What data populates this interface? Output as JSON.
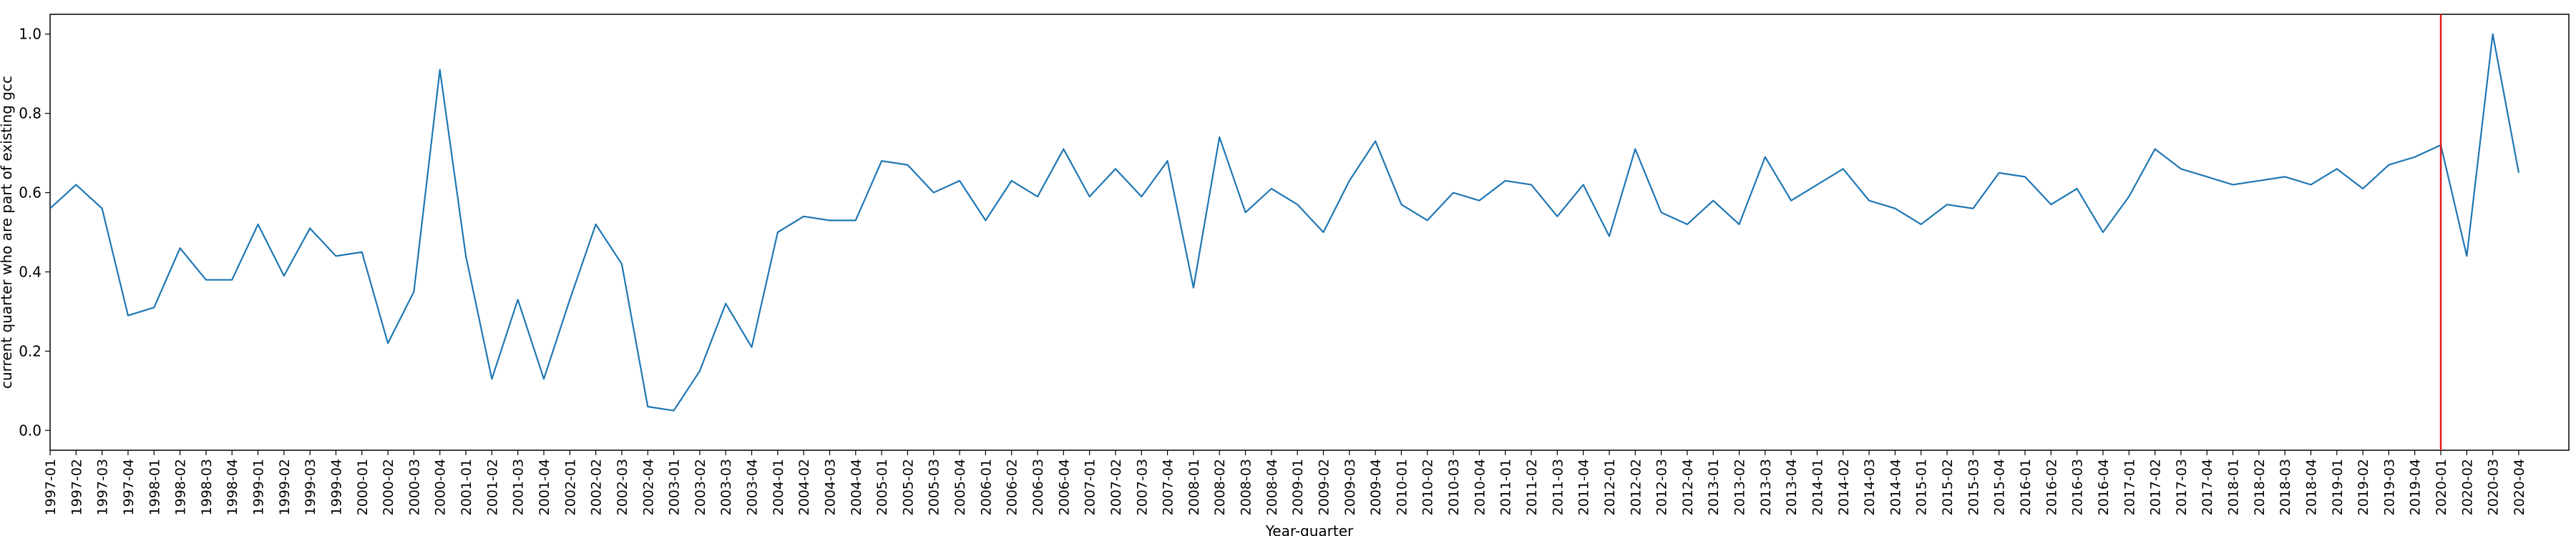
{
  "chart_data": {
    "type": "line",
    "xlabel": "Year-quarter",
    "ylabel": "current quarter who are part of existing gcc",
    "ylim": [
      -0.05,
      1.05
    ],
    "yticks": [
      0.0,
      0.2,
      0.4,
      0.6,
      0.8,
      1.0
    ],
    "ytick_labels": [
      "0.0",
      "0.2",
      "0.4",
      "0.6",
      "0.8",
      "1.0"
    ],
    "grid": false,
    "line_color": "#1f77b4",
    "marker_line": {
      "at": "2020-01",
      "color": "#e31a1c"
    },
    "x": [
      "1997-01",
      "1997-02",
      "1997-03",
      "1997-04",
      "1998-01",
      "1998-02",
      "1998-03",
      "1998-04",
      "1999-01",
      "1999-02",
      "1999-03",
      "1999-04",
      "2000-01",
      "2000-02",
      "2000-03",
      "2000-04",
      "2001-01",
      "2001-02",
      "2001-03",
      "2001-04",
      "2002-01",
      "2002-02",
      "2002-03",
      "2002-04",
      "2003-01",
      "2003-02",
      "2003-03",
      "2003-04",
      "2004-01",
      "2004-02",
      "2004-03",
      "2004-04",
      "2005-01",
      "2005-02",
      "2005-03",
      "2005-04",
      "2006-01",
      "2006-02",
      "2006-03",
      "2006-04",
      "2007-01",
      "2007-02",
      "2007-03",
      "2007-04",
      "2008-01",
      "2008-02",
      "2008-03",
      "2008-04",
      "2009-01",
      "2009-02",
      "2009-03",
      "2009-04",
      "2010-01",
      "2010-02",
      "2010-03",
      "2010-04",
      "2011-01",
      "2011-02",
      "2011-03",
      "2011-04",
      "2012-01",
      "2012-02",
      "2012-03",
      "2012-04",
      "2013-01",
      "2013-02",
      "2013-03",
      "2013-04",
      "2014-01",
      "2014-02",
      "2014-03",
      "2014-04",
      "2015-01",
      "2015-02",
      "2015-03",
      "2015-04",
      "2016-01",
      "2016-02",
      "2016-03",
      "2016-04",
      "2017-01",
      "2017-02",
      "2017-03",
      "2017-04",
      "2018-01",
      "2018-02",
      "2018-03",
      "2018-04",
      "2019-01",
      "2019-02",
      "2019-03",
      "2019-04",
      "2020-01",
      "2020-02",
      "2020-03",
      "2020-04"
    ],
    "values": [
      0.56,
      0.62,
      0.56,
      0.29,
      0.31,
      0.46,
      0.38,
      0.38,
      0.52,
      0.39,
      0.51,
      0.44,
      0.45,
      0.22,
      0.35,
      0.91,
      0.44,
      0.13,
      0.33,
      0.13,
      0.33,
      0.52,
      0.42,
      0.06,
      0.05,
      0.15,
      0.32,
      0.21,
      0.5,
      0.54,
      0.53,
      0.53,
      0.68,
      0.67,
      0.6,
      0.63,
      0.53,
      0.63,
      0.59,
      0.71,
      0.59,
      0.66,
      0.59,
      0.68,
      0.36,
      0.74,
      0.55,
      0.61,
      0.57,
      0.5,
      0.63,
      0.73,
      0.57,
      0.53,
      0.6,
      0.58,
      0.63,
      0.62,
      0.54,
      0.62,
      0.49,
      0.71,
      0.55,
      0.52,
      0.58,
      0.52,
      0.69,
      0.58,
      0.62,
      0.66,
      0.58,
      0.56,
      0.52,
      0.57,
      0.56,
      0.65,
      0.64,
      0.57,
      0.61,
      0.5,
      0.59,
      0.71,
      0.66,
      0.64,
      0.62,
      0.63,
      0.64,
      0.62,
      0.66,
      0.61,
      0.67,
      0.69,
      0.72,
      0.44,
      1.0,
      0.65
    ]
  }
}
